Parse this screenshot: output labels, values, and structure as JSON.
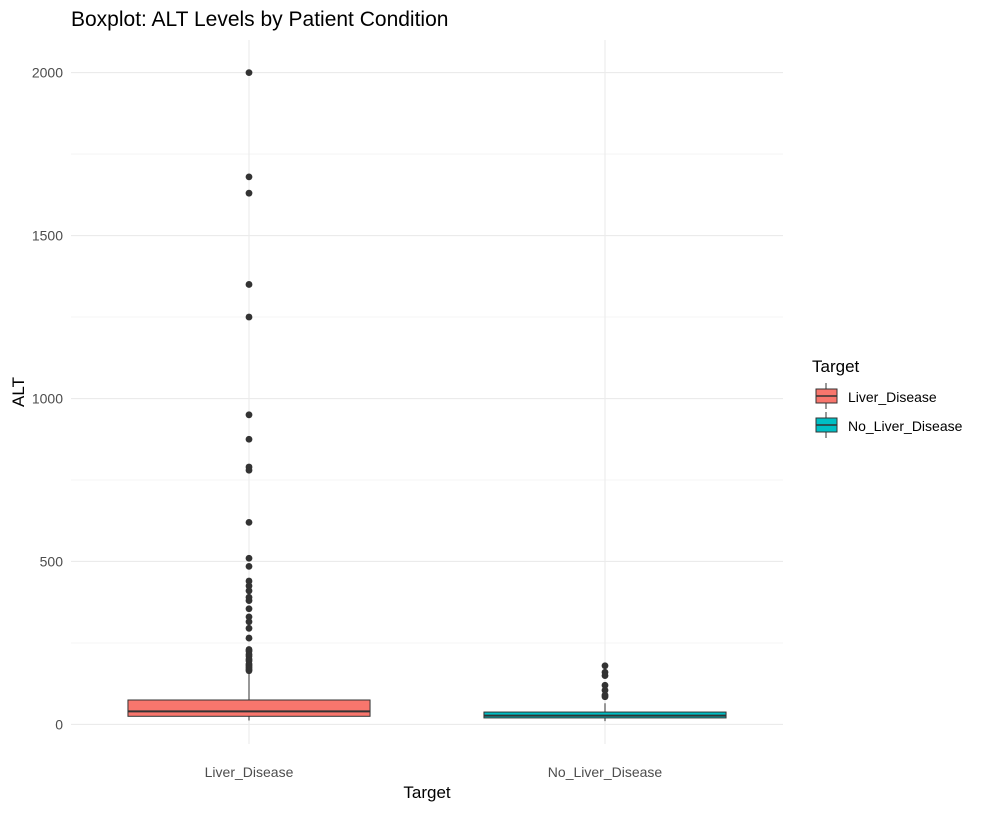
{
  "chart_data": {
    "type": "boxplot",
    "title": "Boxplot: ALT Levels by Patient Condition",
    "xlabel": "Target",
    "ylabel": "ALT",
    "ylim": [
      -60,
      2100
    ],
    "yticks": [
      0,
      500,
      1000,
      1500,
      2000
    ],
    "grid": true,
    "legend": {
      "title": "Target",
      "placement": "right"
    },
    "categories": [
      "Liver_Disease",
      "No_Liver_Disease"
    ],
    "series": [
      {
        "name": "Liver_Disease",
        "color": "#F8766D",
        "q1": 25,
        "median": 40,
        "q3": 75,
        "whisker_low": 12,
        "whisker_high": 160,
        "outliers": [
          2000,
          1680,
          1630,
          1350,
          1250,
          950,
          875,
          790,
          780,
          620,
          510,
          485,
          440,
          425,
          410,
          390,
          380,
          355,
          330,
          315,
          295,
          265,
          230,
          225,
          215,
          210,
          200,
          195,
          185,
          180,
          175,
          170,
          165
        ]
      },
      {
        "name": "No_Liver_Disease",
        "color": "#00BFC4",
        "q1": 20,
        "median": 27,
        "q3": 38,
        "whisker_low": 10,
        "whisker_high": 65,
        "outliers": [
          180,
          160,
          150,
          120,
          105,
          90,
          85
        ]
      }
    ]
  }
}
